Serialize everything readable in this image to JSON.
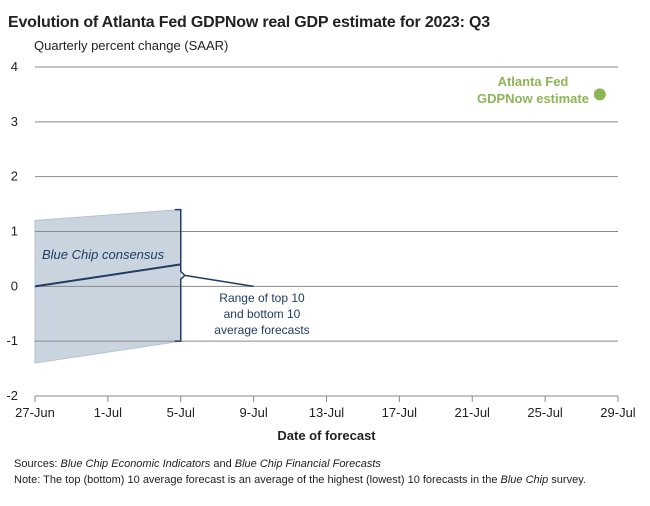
{
  "title": "Evolution of Atlanta Fed GDPNow real GDP estimate for 2023: Q3",
  "subtitle": "Quarterly percent change (SAAR)",
  "footer": {
    "sources_label": "Sources:",
    "sources_src1": "Blue Chip Economic Indicators",
    "sources_and": "and",
    "sources_src2": "Blue Chip Financial Forecasts",
    "note_label": "Note:",
    "note_text1": "The top (bottom) 10 average forecast is an average of the highest (lowest) 10 forecasts in the",
    "note_blue_chip": "Blue Chip",
    "note_text2": "survey."
  },
  "colors": {
    "gdpnow": "#8db556",
    "consensus_line": "#1f3d64",
    "range_fill": "#c9d4de",
    "range_edge": "#b5c2cf",
    "annotation": "#1f3d64",
    "grid": "#8a8a8a"
  },
  "chart_data": {
    "type": "line",
    "xlabel": "Date of forecast",
    "ylabel": "",
    "x_ticks": [
      "27-Jun",
      "1-Jul",
      "5-Jul",
      "9-Jul",
      "13-Jul",
      "17-Jul",
      "21-Jul",
      "25-Jul",
      "29-Jul"
    ],
    "ylim": [
      -2,
      4
    ],
    "y_ticks": [
      "4",
      "3",
      "2",
      "1",
      "0",
      "-1",
      "-2"
    ],
    "grid": "horizontal",
    "series": [
      {
        "name": "Atlanta Fed GDPNow estimate",
        "x": [
          "28-Jul"
        ],
        "y": [
          3.5
        ]
      },
      {
        "name": "Blue Chip consensus",
        "x": [
          "27-Jun",
          "5-Jul"
        ],
        "y": [
          0.0,
          0.4
        ]
      }
    ],
    "range_band": {
      "x": [
        "27-Jun",
        "5-Jul"
      ],
      "top": [
        1.2,
        1.4
      ],
      "bottom": [
        -1.4,
        -1.0
      ]
    },
    "annotations": {
      "gdpnow_label_line1": "Atlanta Fed",
      "gdpnow_label_line2": "GDPNow estimate",
      "consensus_label": "Blue Chip consensus",
      "range_label_line1": "Range of top 10",
      "range_label_line2": "and bottom 10",
      "range_label_line3": "average forecasts"
    }
  }
}
